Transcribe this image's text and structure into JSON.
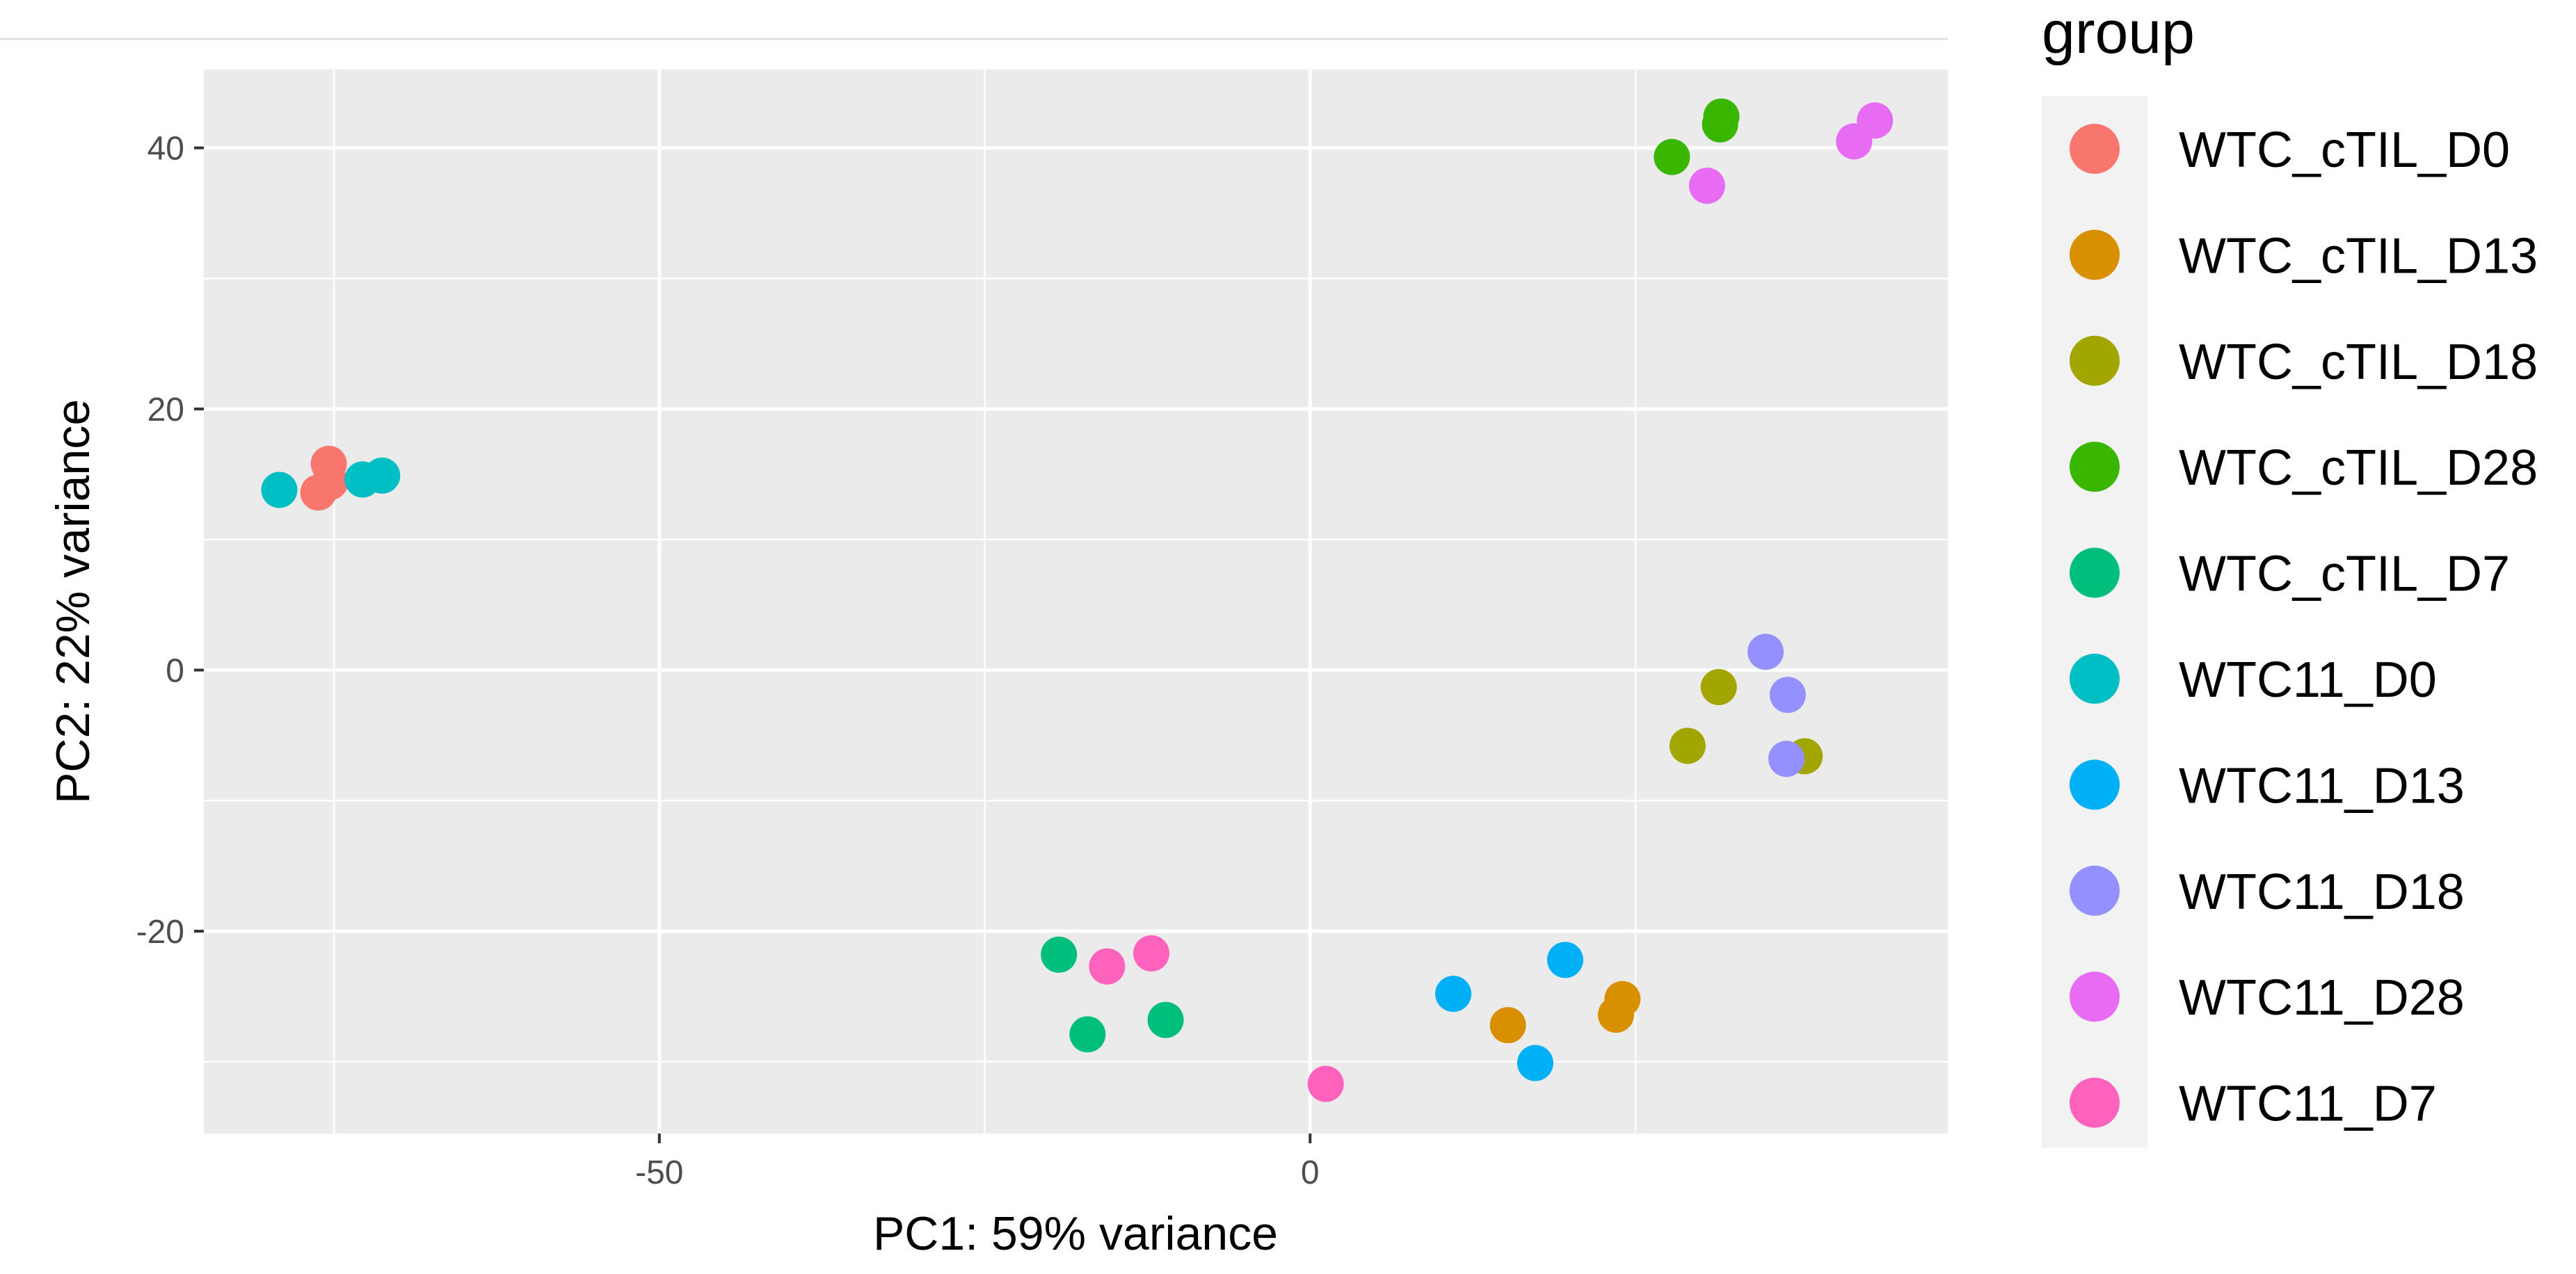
{
  "chart_data": {
    "type": "scatter",
    "title": "",
    "xlabel": "PC1: 59% variance",
    "ylabel": "PC2: 22% variance",
    "xlim": [
      -85,
      49
    ],
    "ylim": [
      -35.5,
      46
    ],
    "x_major_ticks": [
      -50,
      0
    ],
    "x_minor_ticks": [
      -75,
      -25,
      25
    ],
    "y_major_ticks": [
      -20,
      0,
      20,
      40
    ],
    "y_minor_ticks": [
      -30,
      -10,
      10,
      30
    ],
    "grid": true,
    "legend_title": "group",
    "legend_position": "right",
    "series": [
      {
        "name": "WTC_cTIL_D0",
        "color": "#F8766D",
        "points": [
          [
            -76.2,
            13.6
          ],
          [
            -75.4,
            15.8
          ],
          [
            -75.3,
            14.4
          ]
        ]
      },
      {
        "name": "WTC_cTIL_D13",
        "color": "#D89000",
        "points": [
          [
            15.2,
            -27.2
          ],
          [
            23.5,
            -26.4
          ],
          [
            24.0,
            -25.2
          ]
        ]
      },
      {
        "name": "WTC_cTIL_D18",
        "color": "#A3A500",
        "points": [
          [
            29.0,
            -5.8
          ],
          [
            31.4,
            -1.3
          ],
          [
            38.0,
            -6.6
          ]
        ]
      },
      {
        "name": "WTC_cTIL_D28",
        "color": "#39B600",
        "points": [
          [
            27.8,
            39.3
          ],
          [
            31.5,
            41.8
          ],
          [
            31.6,
            42.4
          ]
        ]
      },
      {
        "name": "WTC_cTIL_D7",
        "color": "#00BF7D",
        "points": [
          [
            -19.3,
            -21.8
          ],
          [
            -17.1,
            -27.9
          ],
          [
            -11.1,
            -26.8
          ]
        ]
      },
      {
        "name": "WTC11_D0",
        "color": "#00BFC4",
        "points": [
          [
            -79.2,
            13.8
          ],
          [
            -72.8,
            14.6
          ],
          [
            -71.3,
            14.9
          ]
        ]
      },
      {
        "name": "WTC11_D13",
        "color": "#00B0F6",
        "points": [
          [
            11.0,
            -24.8
          ],
          [
            17.3,
            -30.1
          ],
          [
            19.6,
            -22.2
          ]
        ]
      },
      {
        "name": "WTC11_D18",
        "color": "#9590FF",
        "points": [
          [
            35.0,
            1.4
          ],
          [
            36.7,
            -1.9
          ],
          [
            36.6,
            -6.8
          ]
        ]
      },
      {
        "name": "WTC11_D28",
        "color": "#E76BF3",
        "points": [
          [
            30.5,
            37.1
          ],
          [
            41.8,
            40.5
          ],
          [
            43.4,
            42.1
          ]
        ]
      },
      {
        "name": "WTC11_D7",
        "color": "#FF62BC",
        "points": [
          [
            -15.6,
            -22.7
          ],
          [
            -12.2,
            -21.7
          ],
          [
            1.2,
            -31.7
          ]
        ]
      }
    ]
  }
}
